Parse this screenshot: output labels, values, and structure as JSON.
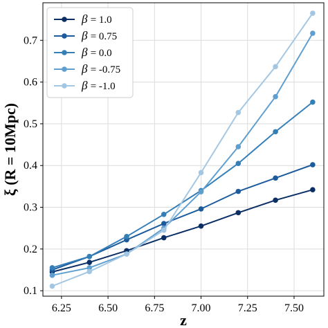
{
  "chart_data": {
    "type": "line",
    "xlabel": "z",
    "ylabel": "ξ (R = 10Mpc)",
    "x": [
      6.2,
      6.4,
      6.6,
      6.8,
      7.0,
      7.2,
      7.4,
      7.6
    ],
    "x_ticks": [
      6.25,
      6.5,
      6.75,
      7.0,
      7.25,
      7.5
    ],
    "x_tick_labels": [
      "6.25",
      "6.50",
      "6.75",
      "7.00",
      "7.25",
      "7.50"
    ],
    "y_ticks": [
      0.1,
      0.2,
      0.3,
      0.4,
      0.5,
      0.6,
      0.7
    ],
    "y_tick_labels": [
      "0.1",
      "0.2",
      "0.3",
      "0.4",
      "0.5",
      "0.6",
      "0.7"
    ],
    "xlim": [
      6.15,
      7.66
    ],
    "ylim": [
      0.087,
      0.79
    ],
    "grid": true,
    "legend_position": "top-left",
    "legend_symbol": "β",
    "series": [
      {
        "name": "= 1.0",
        "color": "#0b2f65",
        "values": [
          0.145,
          0.168,
          0.196,
          0.227,
          0.255,
          0.287,
          0.317,
          0.342
        ]
      },
      {
        "name": "= 0.75",
        "color": "#1d5c9c",
        "values": [
          0.15,
          0.182,
          0.222,
          0.261,
          0.296,
          0.338,
          0.37,
          0.402
        ]
      },
      {
        "name": "= 0.0",
        "color": "#357fb8",
        "values": [
          0.155,
          0.182,
          0.23,
          0.283,
          0.34,
          0.405,
          0.481,
          0.552
        ]
      },
      {
        "name": "= -0.75",
        "color": "#5f9fd0",
        "values": [
          0.137,
          0.155,
          0.188,
          0.25,
          0.337,
          0.445,
          0.565,
          0.717
        ]
      },
      {
        "name": "= -1.0",
        "color": "#a3c7e3",
        "values": [
          0.111,
          0.146,
          0.188,
          0.245,
          0.383,
          0.527,
          0.637,
          0.765
        ]
      }
    ]
  }
}
